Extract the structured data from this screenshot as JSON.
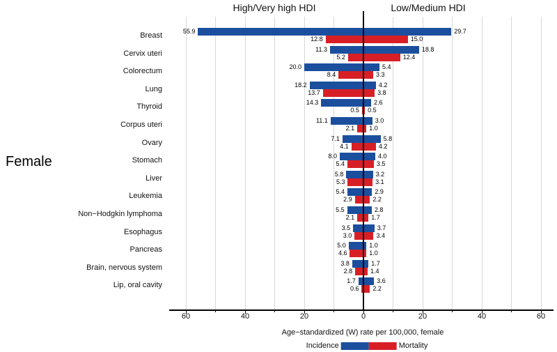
{
  "panel": {
    "label": "Female"
  },
  "colors": {
    "incidence": "#1B4F9E",
    "mortality": "#D81F26",
    "gridline": "#D7D7D7",
    "axis": "#000000"
  },
  "chart_data": {
    "type": "bar",
    "variant": "diverging-horizontal-grouped",
    "title": "",
    "group_headers": {
      "left": "High/Very high HDI",
      "right": "Low/Medium HDI"
    },
    "xlabel": "Age−standardized (W) rate per 100,000, female",
    "ylabel": "",
    "panel_label": "Female",
    "x_axis": {
      "max_units": 60,
      "gridline_interval": 10,
      "tick_units": [
        -60,
        -40,
        -20,
        0,
        20,
        40,
        60
      ],
      "tick_labels": [
        "60",
        "40",
        "20",
        "0",
        "20",
        "40",
        "60"
      ],
      "minor_tick_units": [
        -50,
        -30,
        -10,
        10,
        30,
        50
      ]
    },
    "legend": [
      {
        "label": "Incidence",
        "color": "#1B4F9E"
      },
      {
        "label": "Mortality",
        "color": "#D81F26"
      }
    ],
    "legend_position": "bottom-center",
    "grid": true,
    "categories": [
      "Breast",
      "Cervix uteri",
      "Colorectum",
      "Lung",
      "Thyroid",
      "Corpus uteri",
      "Ovary",
      "Stomach",
      "Liver",
      "Leukemia",
      "Non−Hodgkin lymphoma",
      "Esophagus",
      "Pancreas",
      "Brain, nervous system",
      "Lip, oral cavity"
    ],
    "series": [
      {
        "name": "Incidence",
        "group": "High/Very high HDI",
        "side": "left",
        "values": [
          55.9,
          11.3,
          20.0,
          18.2,
          14.3,
          11.1,
          7.1,
          8.0,
          5.8,
          5.4,
          5.5,
          3.5,
          5.0,
          3.8,
          1.7
        ]
      },
      {
        "name": "Incidence",
        "group": "Low/Medium HDI",
        "side": "right",
        "values": [
          29.7,
          18.8,
          5.4,
          4.2,
          2.6,
          3.0,
          5.8,
          4.0,
          3.2,
          2.9,
          2.8,
          3.7,
          1.0,
          1.7,
          3.6
        ]
      },
      {
        "name": "Mortality",
        "group": "High/Very high HDI",
        "side": "left",
        "values": [
          12.8,
          5.2,
          8.4,
          13.7,
          0.5,
          2.1,
          4.1,
          5.4,
          5.3,
          2.9,
          2.1,
          3.0,
          4.6,
          2.8,
          0.6
        ]
      },
      {
        "name": "Mortality",
        "group": "Low/Medium HDI",
        "side": "right",
        "values": [
          15.0,
          12.4,
          3.3,
          3.8,
          0.5,
          1.0,
          4.2,
          3.5,
          3.1,
          2.2,
          1.7,
          3.4,
          1.0,
          1.4,
          2.2
        ]
      }
    ]
  }
}
